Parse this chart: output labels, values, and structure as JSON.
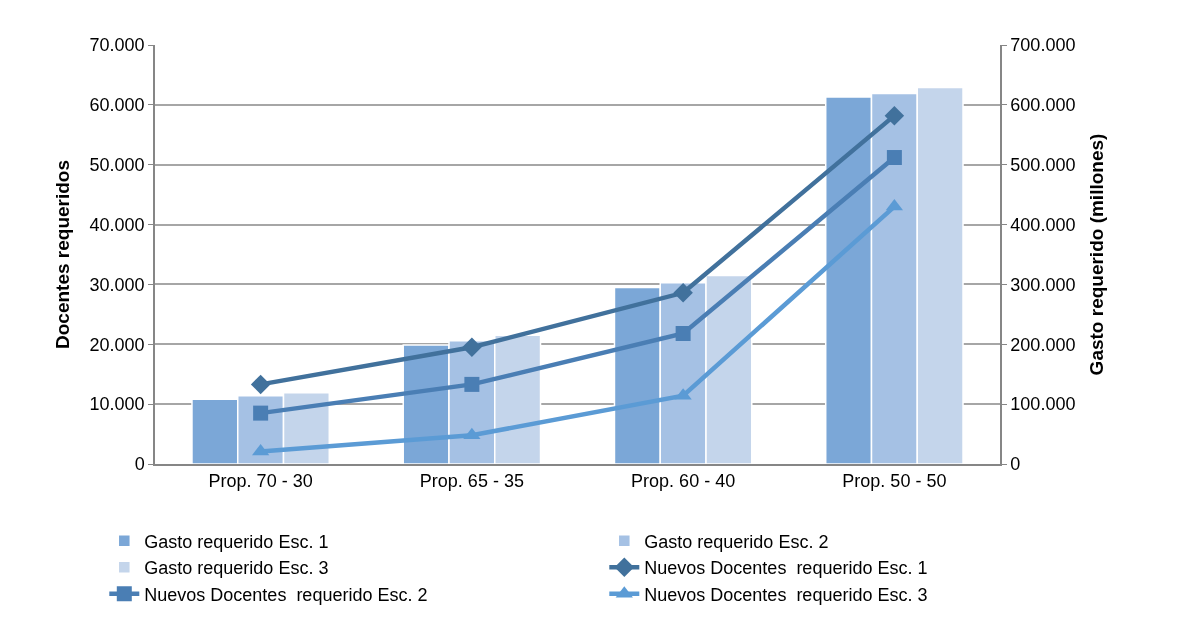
{
  "chart_data": {
    "type": "bar",
    "categories": [
      "Prop. 70 - 30",
      "Prop. 65 - 35",
      "Prop. 60 - 40",
      "Prop. 50 - 50"
    ],
    "ylabel": "Docentes requeridos",
    "y2label": "Gasto requerido (millones)",
    "series": [
      {
        "name": "Gasto requerido Esc. 1",
        "axis": "y2",
        "color": "#7ba7d7",
        "values": [
          108000,
          199000,
          295000,
          613000
        ]
      },
      {
        "name": "Gasto requerido Esc. 2",
        "axis": "y2",
        "color": "#a5c1e4",
        "values": [
          114000,
          206000,
          303000,
          619000
        ]
      },
      {
        "name": "Gasto requerido Esc. 3",
        "axis": "y2",
        "color": "#c4d5eb",
        "values": [
          119000,
          215000,
          315000,
          629000
        ]
      },
      {
        "name": "Nuevos Docentes  requerido Esc. 1",
        "type": "line",
        "marker": "diamond",
        "color": "#41719c",
        "values": [
          13300,
          19500,
          28600,
          58200
        ]
      },
      {
        "name": "Nuevos Docentes  requerido Esc. 2",
        "type": "line",
        "marker": "square",
        "color": "#4a7eb4",
        "values": [
          8500,
          13300,
          21800,
          51200
        ]
      },
      {
        "name": "Nuevos Docentes  requerido Esc. 3",
        "type": "line",
        "marker": "triangle",
        "color": "#5b9bd5",
        "values": [
          2100,
          4800,
          11400,
          43000
        ]
      }
    ],
    "ylim": [
      0,
      70000
    ],
    "yticks": [
      0,
      {
        "value": 10000,
        "label": "10.000"
      },
      {
        "value": 20000,
        "label": "20.000"
      },
      {
        "value": 30000,
        "label": "30.000"
      },
      {
        "value": 40000,
        "label": "40.000"
      },
      {
        "value": 50000,
        "label": "50.000"
      },
      {
        "value": 60000,
        "label": "60.000"
      },
      {
        "value": 70000,
        "label": "70.000"
      }
    ],
    "y2lim": [
      0,
      700000
    ],
    "y2ticks": [
      0,
      {
        "value": 100000,
        "label": "100.000"
      },
      {
        "value": 200000,
        "label": "200.000"
      },
      {
        "value": 300000,
        "label": "300.000"
      },
      {
        "value": 400000,
        "label": "400.000"
      },
      {
        "value": 500000,
        "label": "500.000"
      },
      {
        "value": 600000,
        "label": "600.000"
      },
      {
        "value": 700000,
        "label": "700.000"
      }
    ],
    "grid": "y",
    "legend": "bottom"
  }
}
